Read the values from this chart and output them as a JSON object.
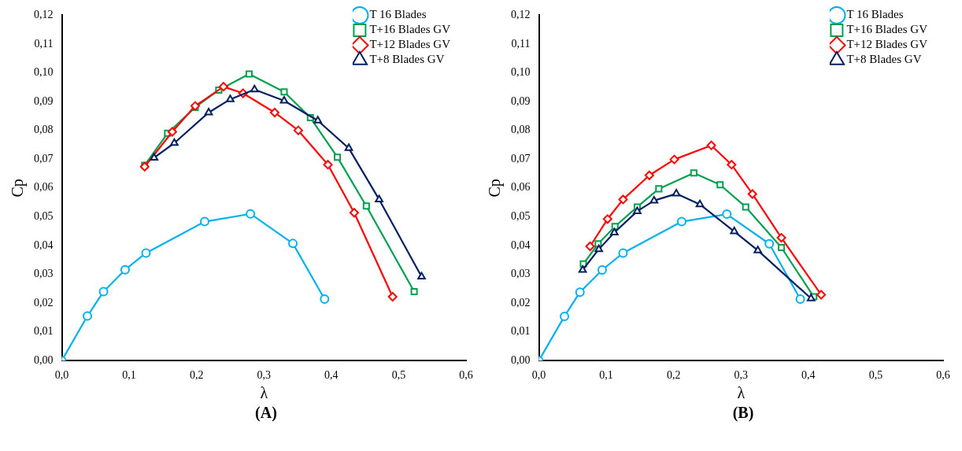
{
  "chart_data": [
    {
      "type": "line",
      "xlabel": "λ",
      "ylabel": "Cp",
      "annotations": [
        "(A)"
      ],
      "legend": "top right",
      "grid": false,
      "xlim": [
        0,
        0.6
      ],
      "xticks": [
        {
          "value": 0,
          "label": "0,0"
        },
        {
          "value": 0.1,
          "label": "0,1"
        },
        {
          "value": 0.2,
          "label": "0,2"
        },
        {
          "value": 0.3,
          "label": "0,3"
        },
        {
          "value": 0.4,
          "label": "0,4"
        },
        {
          "value": 0.5,
          "label": "0,5"
        },
        {
          "value": 0.6,
          "label": "0,6"
        }
      ],
      "ylim": [
        0,
        0.12
      ],
      "yticks": [
        {
          "value": 0,
          "label": "0,00"
        },
        {
          "value": 0.01,
          "label": "0,01"
        },
        {
          "value": 0.02,
          "label": "0,02"
        },
        {
          "value": 0.03,
          "label": "0,03"
        },
        {
          "value": 0.04,
          "label": "0,04"
        },
        {
          "value": 0.05,
          "label": "0,05"
        },
        {
          "value": 0.06,
          "label": "0,06"
        },
        {
          "value": 0.07,
          "label": "0,07"
        },
        {
          "value": 0.08,
          "label": "0,08"
        },
        {
          "value": 0.09,
          "label": "0,09"
        },
        {
          "value": 0.1,
          "label": "0,10"
        },
        {
          "value": 0.11,
          "label": "0,11"
        },
        {
          "value": 0.12,
          "label": "0,12"
        }
      ],
      "series": [
        {
          "name": "T 16 Blades",
          "color": "#00b0f0",
          "marker": "circle",
          "x": [
            0,
            0.038,
            0.062,
            0.094,
            0.125,
            0.212,
            0.28,
            0.343,
            0.39
          ],
          "values": [
            0,
            0.0155,
            0.024,
            0.0316,
            0.0374,
            0.0483,
            0.051,
            0.0407,
            0.0214
          ]
        },
        {
          "name": "T+16 Blades GV",
          "color": "#00a050",
          "marker": "square",
          "x": [
            0.123,
            0.157,
            0.198,
            0.233,
            0.278,
            0.33,
            0.369,
            0.409,
            0.452,
            0.523
          ],
          "values": [
            0.0679,
            0.079,
            0.088,
            0.094,
            0.0996,
            0.0934,
            0.0844,
            0.0707,
            0.0537,
            0.024
          ]
        },
        {
          "name": "T+12 Blades GV",
          "color": "#ff0000",
          "marker": "diamond",
          "x": [
            0.123,
            0.164,
            0.198,
            0.24,
            0.269,
            0.316,
            0.351,
            0.395,
            0.434,
            0.491
          ],
          "values": [
            0.0674,
            0.0795,
            0.0885,
            0.0952,
            0.0929,
            0.0862,
            0.08,
            0.0681,
            0.0514,
            0.0222
          ]
        },
        {
          "name": "T+8 Blades GV",
          "color": "#002060",
          "marker": "triangle",
          "x": [
            0.137,
            0.167,
            0.218,
            0.25,
            0.286,
            0.33,
            0.38,
            0.426,
            0.471,
            0.534
          ],
          "values": [
            0.0705,
            0.0756,
            0.0862,
            0.0908,
            0.0942,
            0.0903,
            0.0834,
            0.0738,
            0.056,
            0.0292
          ]
        }
      ]
    },
    {
      "type": "line",
      "xlabel": "λ",
      "ylabel": "Cp",
      "annotations": [
        "(B)"
      ],
      "legend": "top right",
      "grid": false,
      "xlim": [
        0,
        0.6
      ],
      "xticks": [
        {
          "value": 0,
          "label": "0,0"
        },
        {
          "value": 0.1,
          "label": "0,1"
        },
        {
          "value": 0.2,
          "label": "0,2"
        },
        {
          "value": 0.3,
          "label": "0,3"
        },
        {
          "value": 0.4,
          "label": "0,4"
        },
        {
          "value": 0.5,
          "label": "0,5"
        },
        {
          "value": 0.6,
          "label": "0,6"
        }
      ],
      "ylim": [
        0,
        0.12
      ],
      "yticks": [
        {
          "value": 0,
          "label": "0,00"
        },
        {
          "value": 0.01,
          "label": "0,01"
        },
        {
          "value": 0.02,
          "label": "0,02"
        },
        {
          "value": 0.03,
          "label": "0,03"
        },
        {
          "value": 0.04,
          "label": "0,04"
        },
        {
          "value": 0.05,
          "label": "0,05"
        },
        {
          "value": 0.06,
          "label": "0,06"
        },
        {
          "value": 0.07,
          "label": "0,07"
        },
        {
          "value": 0.08,
          "label": "0,08"
        },
        {
          "value": 0.09,
          "label": "0,09"
        },
        {
          "value": 0.1,
          "label": "0,10"
        },
        {
          "value": 0.11,
          "label": "0,11"
        },
        {
          "value": 0.12,
          "label": "0,12"
        }
      ],
      "series": [
        {
          "name": "T 16 Blades",
          "color": "#00b0f0",
          "marker": "circle",
          "x": [
            0,
            0.038,
            0.061,
            0.094,
            0.125,
            0.212,
            0.279,
            0.342,
            0.388
          ],
          "values": [
            0,
            0.0154,
            0.0238,
            0.0315,
            0.0374,
            0.0483,
            0.0509,
            0.0406,
            0.0214
          ]
        },
        {
          "name": "T+16 Blades GV",
          "color": "#00a050",
          "marker": "square",
          "x": [
            0.066,
            0.088,
            0.113,
            0.146,
            0.178,
            0.23,
            0.269,
            0.307,
            0.36,
            0.408
          ],
          "values": [
            0.0336,
            0.0406,
            0.0466,
            0.0534,
            0.0597,
            0.0652,
            0.0611,
            0.0534,
            0.0393,
            0.0222
          ]
        },
        {
          "name": "T+12 Blades GV",
          "color": "#ff0000",
          "marker": "diamond",
          "x": [
            0.076,
            0.102,
            0.125,
            0.164,
            0.201,
            0.256,
            0.286,
            0.317,
            0.36,
            0.419
          ],
          "values": [
            0.0397,
            0.0492,
            0.056,
            0.0644,
            0.0699,
            0.0748,
            0.0681,
            0.0579,
            0.0427,
            0.0229
          ]
        },
        {
          "name": "T+8 Blades GV",
          "color": "#002060",
          "marker": "triangle",
          "x": [
            0.065,
            0.089,
            0.112,
            0.146,
            0.171,
            0.204,
            0.239,
            0.29,
            0.325,
            0.404
          ],
          "values": [
            0.0315,
            0.0387,
            0.0445,
            0.0519,
            0.0556,
            0.058,
            0.0543,
            0.0449,
            0.0383,
            0.0216
          ]
        }
      ]
    }
  ]
}
